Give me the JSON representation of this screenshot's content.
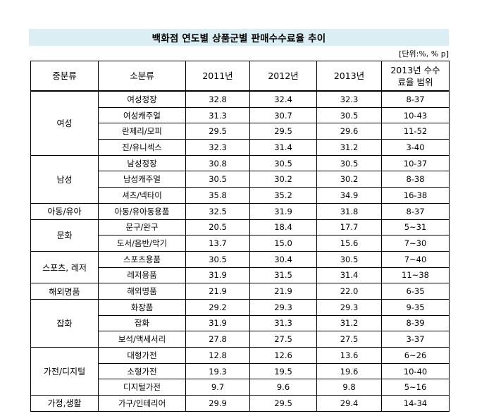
{
  "title": "백화점 연도별 상품군별 판매수수료율 추이",
  "unit": "[단위:%, % p]",
  "headers": {
    "category": "중분류",
    "subcategory": "소분류",
    "y2011": "2011년",
    "y2012": "2012년",
    "y2013": "2013년",
    "range_line1": "2013년 수수",
    "range_line2": "료율 범위"
  },
  "groups": [
    {
      "name": "여성",
      "rows": [
        {
          "sub": "여성정장",
          "y2011": "32.8",
          "y2012": "32.4",
          "y2013": "32.3",
          "range": "8-37"
        },
        {
          "sub": "여성캐주얼",
          "y2011": "31.3",
          "y2012": "30.7",
          "y2013": "30.5",
          "range": "10-43"
        },
        {
          "sub": "란제리/모피",
          "y2011": "29.5",
          "y2012": "29.5",
          "y2013": "29.6",
          "range": "11-52"
        },
        {
          "sub": "진/유니섹스",
          "y2011": "32.3",
          "y2012": "31.4",
          "y2013": "31.2",
          "range": "3-40"
        }
      ]
    },
    {
      "name": "남성",
      "rows": [
        {
          "sub": "남성정장",
          "y2011": "30.8",
          "y2012": "30.5",
          "y2013": "30.5",
          "range": "10-37"
        },
        {
          "sub": "남성캐주얼",
          "y2011": "30.5",
          "y2012": "30.2",
          "y2013": "30.2",
          "range": "8-38"
        },
        {
          "sub": "셔츠/넥타이",
          "y2011": "35.8",
          "y2012": "35.2",
          "y2013": "34.9",
          "range": "16-38"
        }
      ]
    },
    {
      "name": "아동/유아",
      "rows": [
        {
          "sub": "아동/유아동용품",
          "y2011": "32.5",
          "y2012": "31.9",
          "y2013": "31.8",
          "range": "8-37"
        }
      ]
    },
    {
      "name": "문화",
      "rows": [
        {
          "sub": "문구/완구",
          "y2011": "20.5",
          "y2012": "18.4",
          "y2013": "17.7",
          "range": "5~31"
        },
        {
          "sub": "도서/음반/악기",
          "y2011": "13.7",
          "y2012": "15.0",
          "y2013": "15.6",
          "range": "7~30"
        }
      ]
    },
    {
      "name": "스포츠, 레저",
      "rows": [
        {
          "sub": "스포츠용품",
          "y2011": "30.5",
          "y2012": "30.4",
          "y2013": "30.5",
          "range": "7~40"
        },
        {
          "sub": "레저용품",
          "y2011": "31.9",
          "y2012": "31.5",
          "y2013": "31.4",
          "range": "11~38"
        }
      ]
    },
    {
      "name": "해외명품",
      "rows": [
        {
          "sub": "해외명품",
          "y2011": "21.9",
          "y2012": "21.9",
          "y2013": "22.0",
          "range": "6-35"
        }
      ]
    },
    {
      "name": "잡화",
      "rows": [
        {
          "sub": "화장품",
          "y2011": "29.2",
          "y2012": "29.3",
          "y2013": "29.3",
          "range": "9-35"
        },
        {
          "sub": "잡화",
          "y2011": "31.9",
          "y2012": "31.3",
          "y2013": "31.2",
          "range": "8-39"
        },
        {
          "sub": "보석/액세서리",
          "y2011": "27.8",
          "y2012": "27.5",
          "y2013": "27.5",
          "range": "3-37"
        }
      ]
    },
    {
      "name": "가전/디지털",
      "rows": [
        {
          "sub": "대형가전",
          "y2011": "12.8",
          "y2012": "12.6",
          "y2013": "13.6",
          "range": "6~26"
        },
        {
          "sub": "소형가전",
          "y2011": "19.3",
          "y2012": "19.5",
          "y2013": "19.6",
          "range": "10-40"
        },
        {
          "sub": "디지털가전",
          "y2011": "9.7",
          "y2012": "9.6",
          "y2013": "9.8",
          "range": "5~16"
        }
      ]
    },
    {
      "name": "가정,생활",
      "rows": [
        {
          "sub": "가구/인테리어",
          "y2011": "29.9",
          "y2012": "29.5",
          "y2013": "29.4",
          "range": "14-34"
        }
      ]
    }
  ]
}
